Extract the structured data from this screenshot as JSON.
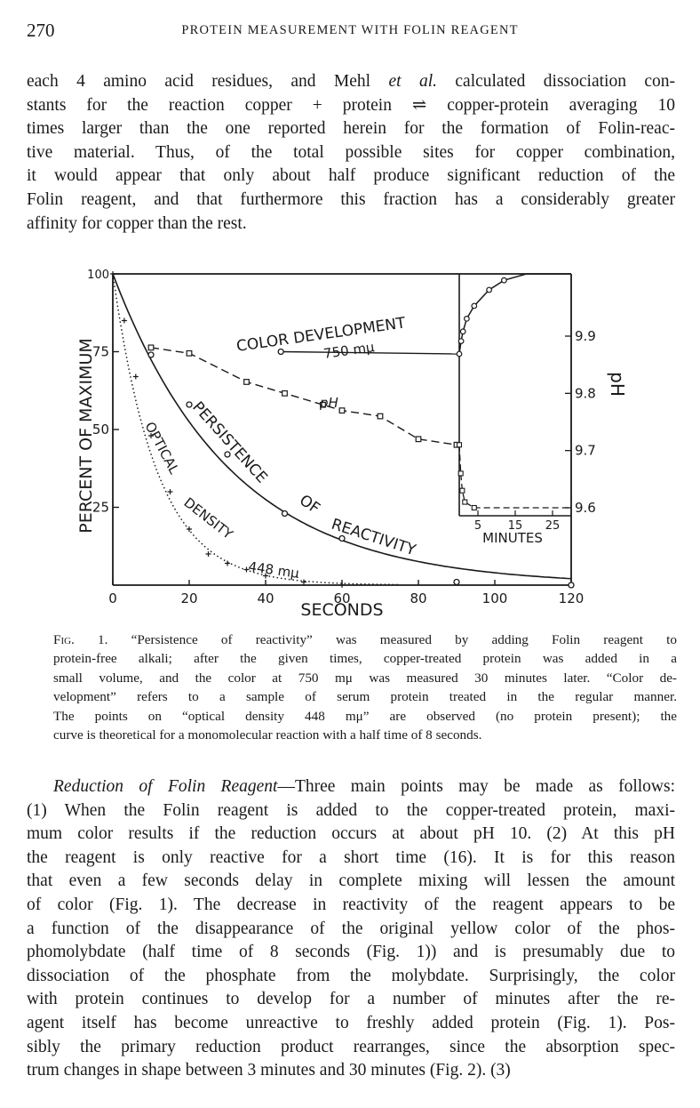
{
  "header": {
    "page_number": "270",
    "running_title": "PROTEIN MEASUREMENT WITH FOLIN REAGENT"
  },
  "paragraph1": {
    "lines": [
      "each 4 amino acid residues, and Mehl et al. calculated dissociation con-",
      "stants for the reaction copper + protein ⇌ copper-protein averaging 10",
      "times larger than the one reported herein for the formation of Folin-reac-",
      "tive material.  Thus, of the total possible sites for copper combination,",
      "it would appear that only about half produce significant reduction of the",
      "Folin reagent, and that furthermore this fraction has a considerably greater",
      "affinity for copper than the rest."
    ]
  },
  "figure": {
    "y_axis_label": "PERCENT OF MAXIMUM",
    "x_axis_label": "SECONDS",
    "y_ticks": [
      "100",
      "75",
      "50",
      "25"
    ],
    "x_ticks": [
      "0",
      "20",
      "40",
      "60",
      "80",
      "100",
      "120"
    ],
    "inset_x_label": "MINUTES",
    "inset_x_ticks": [
      "5",
      "15",
      "25"
    ],
    "ph_axis_label": "pH",
    "ph_ticks": [
      "9.9",
      "9.8",
      "9.7",
      "9.6"
    ],
    "curve_labels": {
      "color_development_1": "COLOR DEVELOPMENT",
      "color_development_2": "750 mμ",
      "ph": "pH",
      "persistence_1": "PERSISTENCE",
      "persistence_2": "OF",
      "persistence_3": "REACTIVITY",
      "optical_1": "OPTICAL",
      "optical_2": "DENSITY",
      "optical_3": "448 mμ"
    }
  },
  "chart_data": {
    "type": "line",
    "xlabel": "SECONDS",
    "ylabel": "PERCENT OF MAXIMUM",
    "xlim": [
      0,
      120
    ],
    "ylim": [
      0,
      100
    ],
    "grid": false,
    "series": [
      {
        "name": "PERSISTENCE OF REACTIVITY",
        "x": [
          10,
          20,
          30,
          45,
          60,
          90,
          120
        ],
        "y": [
          74,
          58,
          42,
          23,
          15,
          1,
          0
        ]
      },
      {
        "name": "OPTICAL DENSITY 448 mμ",
        "x": [
          0,
          3,
          6,
          10,
          15,
          20,
          25,
          30,
          35,
          40,
          50,
          60
        ],
        "y": [
          100,
          85,
          67,
          48,
          30,
          18,
          10,
          7,
          5,
          3,
          1,
          0
        ]
      },
      {
        "name": "pH",
        "axis": "pH",
        "x": [
          10,
          20,
          35,
          45,
          55,
          60,
          70,
          80,
          90
        ],
        "y": [
          9.88,
          9.87,
          9.82,
          9.8,
          9.78,
          9.77,
          9.76,
          9.72,
          9.71
        ]
      },
      {
        "name": "COLOR DEVELOPMENT 750 mμ",
        "x_minutes": [
          0,
          0.5,
          1,
          2,
          4,
          8,
          12,
          18,
          30
        ],
        "y": [
          75,
          79,
          82,
          86,
          90,
          95,
          98,
          100,
          100
        ]
      }
    ],
    "inset": {
      "xlabel": "MINUTES",
      "x_ticks": [
        5,
        15,
        25
      ],
      "ph_ticks": [
        9.9,
        9.8,
        9.7,
        9.6
      ]
    }
  },
  "caption": {
    "lines": [
      "Fig. 1. “Persistence of reactivity” was measured by adding Folin reagent to",
      "protein-free alkali; after the given times, copper-treated protein was added in a",
      "small volume, and the color at 750 mμ was measured 30 minutes later.  “Color de-",
      "velopment” refers to a sample of serum protein treated in the regular manner.",
      "The points on “optical density 448 mμ” are observed (no protein present); the",
      "curve is theoretical for a monomolecular reaction with a half time of 8 seconds."
    ]
  },
  "paragraph2": {
    "lines": [
      "Reduction of Folin Reagent—Three main points may be made as follows:",
      "(1) When the Folin reagent is added to the copper-treated protein, maxi-",
      "mum color results if the reduction occurs at about pH 10.  (2) At this pH",
      "the reagent is only reactive for a short time (16).  It is for this reason",
      "that even a few seconds delay in complete mixing will lessen the amount",
      "of color (Fig. 1).  The decrease in reactivity of the reagent appears to be",
      "a function of the disappearance of the original yellow color of the phos-",
      "phomolybdate (half time of 8 seconds (Fig. 1)) and is presumably due to",
      "dissociation of the phosphate from the molybdate.  Surprisingly, the color",
      "with protein continues to develop for a number of minutes after the re-",
      "agent itself has become unreactive to freshly added protein (Fig. 1).  Pos-",
      "sibly the primary reduction product rearranges, since the absorption spec-",
      "trum changes in shape between 3 minutes and 30 minutes (Fig. 2).  (3)"
    ]
  }
}
